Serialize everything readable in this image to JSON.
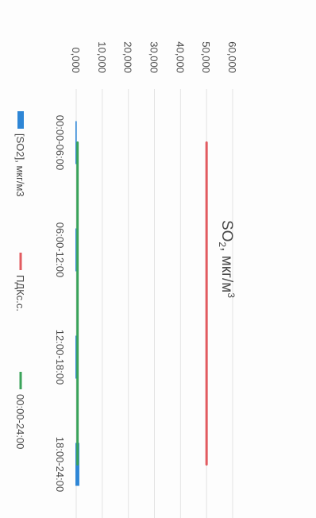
{
  "chart_data": {
    "type": "line",
    "title_main": "SO",
    "title_sub": "2",
    "title_rest": ", мкг/м",
    "title_sup": "3",
    "categories": [
      "00:00-06:00",
      "06:00-12:00",
      "12:00-18:00",
      "18:00-24:00"
    ],
    "y_ticks": [
      "0,000",
      "10,000",
      "20,000",
      "30,000",
      "40,000",
      "50,000",
      "60,000"
    ],
    "ylim": [
      0,
      60
    ],
    "grid": true,
    "legend_position": "bottom",
    "series": [
      {
        "name": "[SO2], мкг/м3",
        "kind": "bar",
        "color": "#2e86d6",
        "values": [
          0.2,
          0.1,
          0.9,
          1.2
        ]
      },
      {
        "name": "ПДКс.с.",
        "kind": "line",
        "color": "#e25b60",
        "values": [
          50,
          50,
          50,
          50
        ]
      },
      {
        "name": "00:00-24:00",
        "kind": "line",
        "color": "#3aa35a",
        "values": [
          0.5,
          0.5,
          0.5,
          0.5
        ]
      }
    ]
  }
}
